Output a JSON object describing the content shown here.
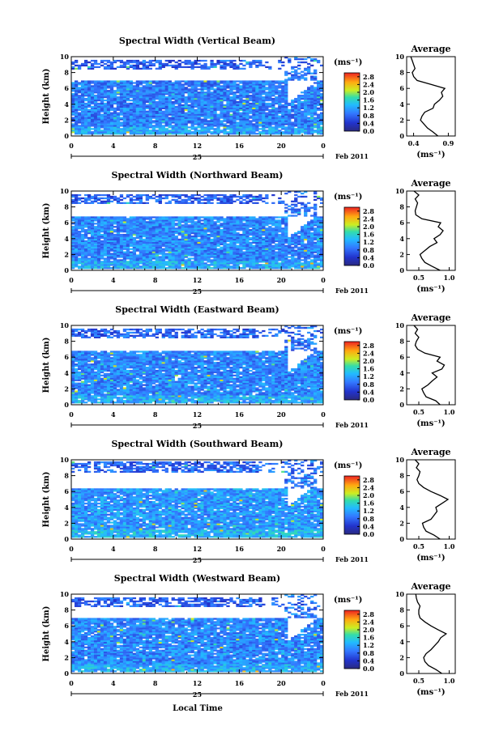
{
  "figure": {
    "xlabel": "Local Time",
    "date_label": "Feb 2011",
    "day_label": "25",
    "colorbar_unit": "(ms⁻¹)",
    "colorbar_ticks": [
      "2.8",
      "2.4",
      "2.0",
      "1.6",
      "1.2",
      "0.8",
      "0.4",
      "0.0"
    ],
    "average_title": "Average",
    "average_xlabel": "(ms⁻¹)"
  },
  "chart_data": [
    {
      "type": "heatmap",
      "title": "Spectral Width (Vertical Beam)",
      "xlabel": "Local Time",
      "ylabel": "Height (km)",
      "x_ticks": [
        "0",
        "4",
        "8",
        "12",
        "16",
        "20",
        "0"
      ],
      "xlim": [
        0,
        24
      ],
      "y_ticks": [
        "0",
        "2",
        "4",
        "6",
        "8",
        "10"
      ],
      "ylim": [
        0,
        10
      ],
      "colorbar": {
        "label": "(ms⁻¹)",
        "range": [
          0,
          3.0
        ],
        "ticks": [
          "2.8",
          "2.4",
          "2.0",
          "1.6",
          "1.2",
          "0.8",
          "0.4",
          "0.0"
        ]
      },
      "layers": [
        {
          "from_km": 0.2,
          "to_km": 6.9,
          "level": 0.55
        },
        {
          "from_km": 8.5,
          "to_km": 9.6,
          "level": 0.35
        }
      ],
      "average_profile": {
        "title": "Average",
        "xlabel": "(ms⁻¹)",
        "x_ticks": [
          "0.4",
          "0.9"
        ],
        "xlim": [
          0.3,
          1.0
        ],
        "ylim": [
          0,
          10
        ],
        "height_km": [
          0,
          0.5,
          1,
          1.5,
          2,
          2.5,
          3,
          3.5,
          4,
          4.5,
          5,
          5.5,
          6,
          6.5,
          7,
          7.5,
          8,
          8.5,
          9,
          9.5,
          10
        ],
        "value": [
          0.75,
          0.68,
          0.6,
          0.55,
          0.5,
          0.52,
          0.56,
          0.68,
          0.7,
          0.77,
          0.82,
          0.8,
          0.85,
          0.65,
          0.45,
          0.4,
          0.38,
          0.42,
          0.4,
          0.38,
          0.36
        ]
      }
    },
    {
      "type": "heatmap",
      "title": "Spectral Width (Northward Beam)",
      "xlabel": "Local Time",
      "ylabel": "Height (km)",
      "x_ticks": [
        "0",
        "4",
        "8",
        "12",
        "16",
        "20",
        "0"
      ],
      "xlim": [
        0,
        24
      ],
      "y_ticks": [
        "0",
        "2",
        "4",
        "6",
        "8",
        "10"
      ],
      "ylim": [
        0,
        10
      ],
      "colorbar": {
        "label": "(ms⁻¹)",
        "range": [
          0,
          3.0
        ],
        "ticks": [
          "2.8",
          "2.4",
          "2.0",
          "1.6",
          "1.2",
          "0.8",
          "0.4",
          "0.0"
        ]
      },
      "layers": [
        {
          "from_km": 0.2,
          "to_km": 6.7,
          "level": 0.6
        },
        {
          "from_km": 8.5,
          "to_km": 9.6,
          "level": 0.35
        }
      ],
      "average_profile": {
        "title": "Average",
        "xlabel": "(ms⁻¹)",
        "x_ticks": [
          "0.5",
          "1.0"
        ],
        "xlim": [
          0.3,
          1.1
        ],
        "ylim": [
          0,
          10
        ],
        "height_km": [
          0,
          0.5,
          1,
          1.5,
          2,
          2.5,
          3,
          3.5,
          4,
          4.5,
          5,
          5.5,
          6,
          6.5,
          7,
          7.5,
          8,
          8.5,
          9,
          9.5,
          10
        ],
        "value": [
          0.85,
          0.72,
          0.6,
          0.55,
          0.52,
          0.6,
          0.68,
          0.8,
          0.75,
          0.85,
          0.9,
          0.82,
          0.86,
          0.55,
          0.45,
          0.44,
          0.46,
          0.48,
          0.44,
          0.5,
          0.42
        ]
      }
    },
    {
      "type": "heatmap",
      "title": "Spectral Width (Eastward Beam)",
      "xlabel": "Local Time",
      "ylabel": "Height (km)",
      "x_ticks": [
        "0",
        "4",
        "8",
        "12",
        "16",
        "20",
        "0"
      ],
      "xlim": [
        0,
        24
      ],
      "y_ticks": [
        "0",
        "2",
        "4",
        "6",
        "8",
        "10"
      ],
      "ylim": [
        0,
        10
      ],
      "colorbar": {
        "label": "(ms⁻¹)",
        "range": [
          0,
          3.0
        ],
        "ticks": [
          "2.8",
          "2.4",
          "2.0",
          "1.6",
          "1.2",
          "0.8",
          "0.4",
          "0.0"
        ]
      },
      "layers": [
        {
          "from_km": 0.2,
          "to_km": 6.8,
          "level": 0.6
        },
        {
          "from_km": 8.4,
          "to_km": 9.6,
          "level": 0.4
        }
      ],
      "average_profile": {
        "title": "Average",
        "xlabel": "(ms⁻¹)",
        "x_ticks": [
          "0.5",
          "1.0"
        ],
        "xlim": [
          0.3,
          1.1
        ],
        "ylim": [
          0,
          10
        ],
        "height_km": [
          0,
          0.5,
          1,
          1.5,
          2,
          2.5,
          3,
          3.5,
          4,
          4.5,
          5,
          5.5,
          6,
          6.5,
          7,
          7.5,
          8,
          8.5,
          9,
          9.5,
          10
        ],
        "value": [
          0.85,
          0.78,
          0.62,
          0.58,
          0.55,
          0.65,
          0.72,
          0.8,
          0.72,
          0.88,
          0.92,
          0.8,
          0.85,
          0.6,
          0.48,
          0.44,
          0.46,
          0.5,
          0.44,
          0.48,
          0.42
        ]
      }
    },
    {
      "type": "heatmap",
      "title": "Spectral Width (Southward Beam)",
      "xlabel": "Local Time",
      "ylabel": "Height (km)",
      "x_ticks": [
        "0",
        "4",
        "8",
        "12",
        "16",
        "20",
        "0"
      ],
      "xlim": [
        0,
        24
      ],
      "y_ticks": [
        "0",
        "2",
        "4",
        "6",
        "8",
        "10"
      ],
      "ylim": [
        0,
        10
      ],
      "colorbar": {
        "label": "(ms⁻¹)",
        "range": [
          0,
          3.0
        ],
        "ticks": [
          "2.8",
          "2.4",
          "2.0",
          "1.6",
          "1.2",
          "0.8",
          "0.4",
          "0.0"
        ]
      },
      "layers": [
        {
          "from_km": 0.2,
          "to_km": 6.4,
          "level": 0.7
        },
        {
          "from_km": 8.3,
          "to_km": 9.8,
          "level": 0.4
        }
      ],
      "average_profile": {
        "title": "Average",
        "xlabel": "(ms⁻¹)",
        "x_ticks": [
          "0.5",
          "1.0"
        ],
        "xlim": [
          0.3,
          1.1
        ],
        "ylim": [
          0,
          10
        ],
        "height_km": [
          0,
          0.5,
          1,
          1.5,
          2,
          2.5,
          3,
          3.5,
          4,
          4.5,
          5,
          5.5,
          6,
          6.5,
          7,
          7.5,
          8,
          8.5,
          9,
          9.5,
          10
        ],
        "value": [
          0.85,
          0.75,
          0.62,
          0.58,
          0.56,
          0.7,
          0.75,
          0.8,
          0.78,
          0.88,
          0.98,
          0.85,
          0.7,
          0.58,
          0.5,
          0.47,
          0.5,
          0.52,
          0.46,
          0.5,
          0.44
        ]
      }
    },
    {
      "type": "heatmap",
      "title": "Spectral Width (Westward Beam)",
      "xlabel": "Local Time",
      "ylabel": "Height (km)",
      "x_ticks": [
        "0",
        "4",
        "8",
        "12",
        "16",
        "20",
        "0"
      ],
      "xlim": [
        0,
        24
      ],
      "y_ticks": [
        "0",
        "2",
        "4",
        "6",
        "8",
        "10"
      ],
      "ylim": [
        0,
        10
      ],
      "colorbar": {
        "label": "(ms⁻¹)",
        "range": [
          0,
          3.0
        ],
        "ticks": [
          "2.8",
          "2.4",
          "2.0",
          "1.6",
          "1.2",
          "0.8",
          "0.4",
          "0.0"
        ]
      },
      "layers": [
        {
          "from_km": 0.2,
          "to_km": 6.9,
          "level": 0.6
        },
        {
          "from_km": 8.4,
          "to_km": 9.6,
          "level": 0.35
        }
      ],
      "average_profile": {
        "title": "Average",
        "xlabel": "(ms⁻¹)",
        "x_ticks": [
          "0.5",
          "1.0"
        ],
        "xlim": [
          0.3,
          1.1
        ],
        "ylim": [
          0,
          10
        ],
        "height_km": [
          0,
          0.5,
          1,
          1.5,
          2,
          2.5,
          3,
          3.5,
          4,
          4.5,
          5,
          5.5,
          6,
          6.5,
          7,
          7.5,
          8,
          8.5,
          9,
          9.5,
          10
        ],
        "value": [
          0.88,
          0.78,
          0.66,
          0.6,
          0.58,
          0.62,
          0.7,
          0.76,
          0.82,
          0.86,
          0.95,
          0.82,
          0.7,
          0.6,
          0.52,
          0.5,
          0.5,
          0.52,
          0.48,
          0.46,
          0.45
        ]
      }
    }
  ]
}
